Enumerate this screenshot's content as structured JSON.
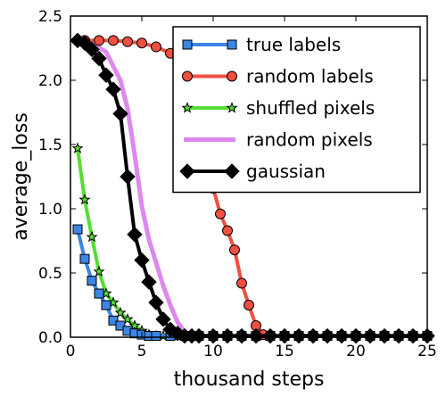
{
  "chart_data": {
    "type": "line",
    "title": "",
    "xlabel": "thousand steps",
    "ylabel": "average_loss",
    "xlim": [
      0,
      25
    ],
    "ylim": [
      0,
      2.5
    ],
    "xticks": [
      0,
      5,
      10,
      15,
      20,
      25
    ],
    "yticks": [
      0.0,
      0.5,
      1.0,
      1.5,
      2.0,
      2.5
    ],
    "grid": false,
    "legend_position": "top-right",
    "series": [
      {
        "name": "true labels",
        "color": "#3d85e6",
        "marker": "square",
        "x": [
          0.5,
          1.0,
          1.5,
          2.0,
          2.5,
          3.0,
          3.5,
          4.0,
          4.5,
          5.0,
          5.5,
          6.0,
          7.0,
          8.0,
          9.0,
          10.0,
          11.0,
          12.0,
          13.0,
          14.0,
          15.0,
          16.0,
          17.0,
          18.0,
          19.0,
          20.0,
          21.0,
          22.0,
          23.0,
          24.0,
          25.0
        ],
        "y": [
          0.84,
          0.61,
          0.44,
          0.34,
          0.25,
          0.13,
          0.09,
          0.05,
          0.03,
          0.02,
          0.01,
          0.01,
          0.01,
          0.01,
          0.01,
          0.01,
          0.01,
          0.01,
          0.01,
          0.01,
          0.01,
          0.01,
          0.01,
          0.01,
          0.01,
          0.01,
          0.01,
          0.01,
          0.01,
          0.01,
          0.01
        ]
      },
      {
        "name": "random labels",
        "color": "#f05040",
        "marker": "circle",
        "x": [
          0.5,
          1.0,
          2.0,
          3.0,
          4.0,
          5.0,
          6.0,
          7.0,
          8.0,
          8.5,
          9.0,
          9.5,
          10.0,
          10.5,
          11.0,
          11.5,
          12.0,
          12.5,
          13.0,
          13.5,
          14.0,
          15.0,
          16.0,
          17.0,
          18.0,
          19.0,
          20.0,
          21.0,
          22.0,
          23.0,
          24.0,
          25.0
        ],
        "y": [
          2.31,
          2.31,
          2.31,
          2.31,
          2.3,
          2.29,
          2.26,
          2.21,
          2.13,
          2.05,
          1.86,
          1.53,
          1.16,
          0.96,
          0.83,
          0.68,
          0.42,
          0.25,
          0.09,
          0.02,
          0.01,
          0.01,
          0.01,
          0.01,
          0.01,
          0.01,
          0.01,
          0.01,
          0.01,
          0.01,
          0.01,
          0.01
        ]
      },
      {
        "name": "shuffled pixels",
        "color": "#55dd33",
        "marker": "star",
        "x": [
          0.5,
          1.0,
          1.5,
          2.0,
          2.5,
          3.0,
          3.5,
          4.0,
          4.5,
          5.0,
          5.5,
          6.0,
          6.5,
          7.0,
          7.5,
          8.0,
          9.0,
          10.0,
          11.0,
          12.0,
          13.0,
          14.0,
          15.0,
          16.0,
          17.0,
          18.0,
          19.0,
          20.0,
          21.0,
          22.0,
          23.0,
          24.0,
          25.0
        ],
        "y": [
          1.47,
          1.07,
          0.78,
          0.51,
          0.34,
          0.27,
          0.19,
          0.14,
          0.09,
          0.05,
          0.02,
          0.01,
          0.01,
          0.01,
          0.01,
          0.01,
          0.01,
          0.01,
          0.01,
          0.01,
          0.01,
          0.01,
          0.01,
          0.01,
          0.01,
          0.01,
          0.01,
          0.01,
          0.01,
          0.01,
          0.01,
          0.01,
          0.01
        ]
      },
      {
        "name": "random pixels",
        "color": "#dd88ee",
        "marker": "none",
        "x": [
          0.5,
          1.5,
          2.5,
          3.5,
          4.0,
          4.5,
          5.0,
          5.5,
          6.0,
          6.5,
          7.0,
          7.5,
          8.0,
          8.5,
          9.0,
          10.0,
          12.0,
          14.0,
          16.0,
          18.0,
          20.0,
          22.0,
          25.0
        ],
        "y": [
          2.31,
          2.29,
          2.22,
          2.0,
          1.78,
          1.42,
          1.02,
          0.76,
          0.58,
          0.4,
          0.25,
          0.12,
          0.04,
          0.01,
          0.01,
          0.01,
          0.01,
          0.01,
          0.01,
          0.01,
          0.01,
          0.01,
          0.01
        ]
      },
      {
        "name": "gaussian",
        "color": "#000000",
        "marker": "diamond",
        "x": [
          0.5,
          1.0,
          1.5,
          2.0,
          2.5,
          3.0,
          3.5,
          4.0,
          4.5,
          5.0,
          5.5,
          6.0,
          6.5,
          7.0,
          7.5,
          8.0,
          8.5,
          9.0,
          10.0,
          11.0,
          12.0,
          13.0,
          14.0,
          15.0,
          16.0,
          17.0,
          18.0,
          19.0,
          20.0,
          21.0,
          22.0,
          23.0,
          24.0,
          25.0
        ],
        "y": [
          2.31,
          2.29,
          2.24,
          2.17,
          2.04,
          1.93,
          1.74,
          1.25,
          0.8,
          0.6,
          0.43,
          0.27,
          0.14,
          0.06,
          0.03,
          0.01,
          0.01,
          0.01,
          0.01,
          0.01,
          0.01,
          0.01,
          0.01,
          0.01,
          0.01,
          0.01,
          0.01,
          0.01,
          0.01,
          0.01,
          0.01,
          0.01,
          0.01,
          0.01
        ]
      }
    ]
  }
}
